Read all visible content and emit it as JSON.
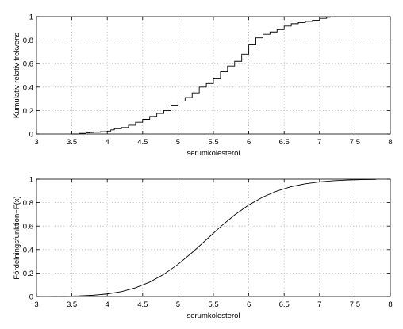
{
  "chart_data": [
    {
      "type": "line",
      "subtype": "step",
      "xlabel": "serumkolesterol",
      "ylabel": "Kumulativ relativ frekvens",
      "xlim": [
        3,
        8
      ],
      "ylim": [
        0,
        1
      ],
      "xticks": [
        3,
        3.5,
        4,
        4.5,
        5,
        5.5,
        6,
        6.5,
        7,
        7.5,
        8
      ],
      "yticks": [
        0,
        0.2,
        0.4,
        0.6,
        0.8,
        1
      ],
      "xtick_labels": [
        "3",
        "3.5",
        "4",
        "4.5",
        "5",
        "5.5",
        "6",
        "6.5",
        "7",
        "7.5",
        "8"
      ],
      "ytick_labels": [
        "0",
        "0.2",
        "0.4",
        "0.6",
        "0.8",
        "1"
      ],
      "grid": true,
      "series": [
        {
          "x": [
            3.5,
            3.6,
            3.7,
            3.75,
            3.8,
            3.9,
            4.0,
            4.05,
            4.1,
            4.2,
            4.3,
            4.4,
            4.5,
            4.6,
            4.7,
            4.8,
            4.9,
            5.0,
            5.1,
            5.2,
            5.3,
            5.4,
            5.5,
            5.6,
            5.7,
            5.8,
            5.9,
            6.0,
            6.1,
            6.2,
            6.3,
            6.4,
            6.5,
            6.6,
            6.7,
            6.8,
            6.9,
            7.0,
            7.1,
            7.15
          ],
          "y": [
            0.0,
            0.005,
            0.01,
            0.012,
            0.015,
            0.02,
            0.025,
            0.035,
            0.045,
            0.055,
            0.075,
            0.1,
            0.125,
            0.15,
            0.175,
            0.2,
            0.24,
            0.28,
            0.31,
            0.35,
            0.4,
            0.43,
            0.47,
            0.53,
            0.58,
            0.62,
            0.68,
            0.76,
            0.82,
            0.85,
            0.87,
            0.89,
            0.92,
            0.94,
            0.95,
            0.96,
            0.97,
            0.985,
            0.995,
            1.0
          ]
        }
      ]
    },
    {
      "type": "line",
      "xlabel": "serumkolesterol",
      "ylabel": "Fördelningsfunktion−F(x)",
      "xlim": [
        3,
        8
      ],
      "ylim": [
        0,
        1
      ],
      "xticks": [
        3,
        3.5,
        4,
        4.5,
        5,
        5.5,
        6,
        6.5,
        7,
        7.5,
        8
      ],
      "yticks": [
        0,
        0.2,
        0.4,
        0.6,
        0.8,
        1
      ],
      "xtick_labels": [
        "3",
        "3.5",
        "4",
        "4.5",
        "5",
        "5.5",
        "6",
        "6.5",
        "7",
        "7.5",
        "8"
      ],
      "ytick_labels": [
        "0",
        "0.2",
        "0.4",
        "0.6",
        "0.8",
        "1"
      ],
      "grid": true,
      "series": [
        {
          "x": [
            3.2,
            3.4,
            3.6,
            3.8,
            4.0,
            4.2,
            4.4,
            4.6,
            4.8,
            5.0,
            5.2,
            5.4,
            5.6,
            5.8,
            6.0,
            6.2,
            6.4,
            6.6,
            6.8,
            7.0,
            7.2,
            7.4,
            7.6,
            7.8
          ],
          "y": [
            0.001,
            0.002,
            0.005,
            0.011,
            0.022,
            0.042,
            0.075,
            0.123,
            0.189,
            0.274,
            0.375,
            0.484,
            0.594,
            0.695,
            0.78,
            0.848,
            0.899,
            0.936,
            0.961,
            0.977,
            0.987,
            0.993,
            0.996,
            0.998
          ]
        }
      ]
    }
  ]
}
